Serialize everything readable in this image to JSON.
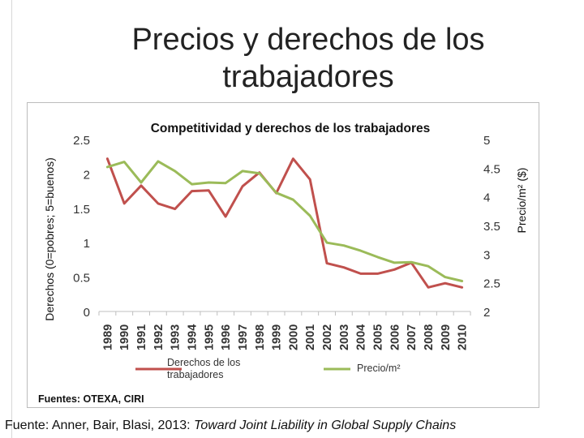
{
  "slide": {
    "title_line1": "Precios y derechos de los",
    "title_line2": "trabajadores",
    "footer_prefix": "Fuente: Anner, Bair, Blasi, 2013: ",
    "footer_italic": "Toward Joint Liability in Global Supply Chains"
  },
  "colors": {
    "rights_line": "#c0504d",
    "price_line": "#9bbb59"
  },
  "chart_data": {
    "type": "line",
    "title": "Competitividad y derechos de los trabajadores",
    "ylabel_left": "Derechos (0=pobres; 5=buenos)",
    "ylabel_right": "Precio/m² ($)",
    "source_note": "Fuentes: OTEXA, CIRI",
    "ylim_left": [
      0,
      2.5
    ],
    "yticks_left": [
      "0",
      "0.5",
      "1",
      "1.5",
      "2",
      "2.5"
    ],
    "ylim_right": [
      2,
      5
    ],
    "yticks_right": [
      "2",
      "2.5",
      "3",
      "3.5",
      "4",
      "4.5",
      "5"
    ],
    "categories": [
      "1989",
      "1990",
      "1991",
      "1992",
      "1993",
      "1994",
      "1995",
      "1996",
      "1997",
      "1998",
      "1999",
      "2000",
      "2001",
      "2002",
      "2003",
      "2004",
      "2005",
      "2006",
      "2007",
      "2008",
      "2009",
      "2010"
    ],
    "series": [
      {
        "name": "Derechos de los trabajadores",
        "axis": "left",
        "values": [
          2.22,
          1.57,
          1.83,
          1.57,
          1.49,
          1.75,
          1.76,
          1.38,
          1.82,
          2.02,
          1.72,
          2.22,
          1.92,
          0.7,
          0.64,
          0.55,
          0.55,
          0.61,
          0.71,
          0.35,
          0.41,
          0.35
        ]
      },
      {
        "name": "Precio/m²",
        "axis": "right",
        "values": [
          4.52,
          4.61,
          4.25,
          4.62,
          4.45,
          4.22,
          4.25,
          4.24,
          4.45,
          4.41,
          4.07,
          3.95,
          3.67,
          3.2,
          3.15,
          3.06,
          2.95,
          2.85,
          2.86,
          2.79,
          2.6,
          2.53
        ]
      }
    ]
  }
}
